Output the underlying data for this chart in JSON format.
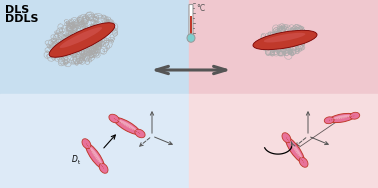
{
  "bg_left_top": "#c8dff0",
  "bg_right_top": "#f0c8cf",
  "bg_left_bottom": "#ddeaf7",
  "bg_right_bottom": "#f7dde0",
  "text_dls": "DLS",
  "text_ddls": "DDLS",
  "text_celsius": "°C",
  "nanorod_color": "#c0392b",
  "nanorod_highlight": "#d95f5f",
  "nanorod_dark": "#7b0000",
  "polymer_color": "#aaaaaa",
  "polymer_lw": 0.45,
  "arrow_color": "#555555",
  "axis_color": "#555555",
  "rod_small_fill": "#e8729a",
  "rod_small_edge": "#c0392b",
  "thermo_red": "#c0392b",
  "thermo_bulb": "#7ecece",
  "thermo_tube": "#999999",
  "title_fontsize": 8,
  "figsize": [
    3.78,
    1.88
  ],
  "dpi": 100
}
